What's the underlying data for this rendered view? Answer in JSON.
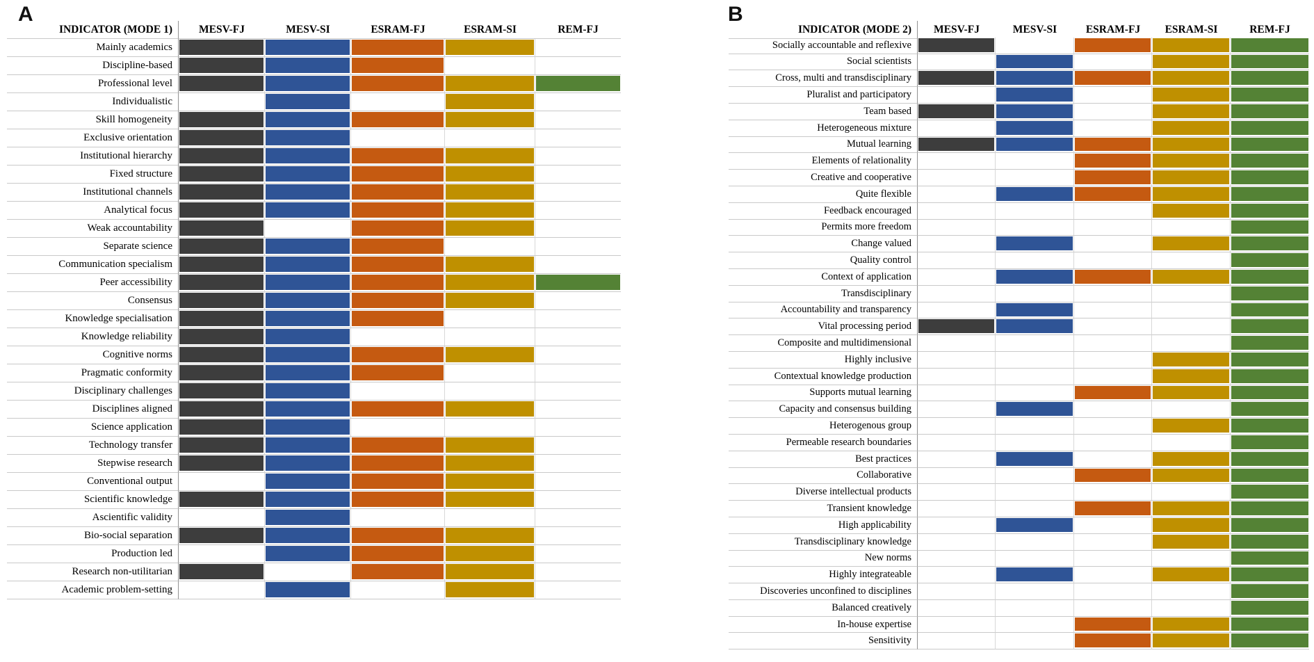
{
  "figure": {
    "panel_a_letter": "A",
    "panel_b_letter": "B"
  },
  "colors": {
    "mesv_fj_dark": "#3d3d3d",
    "mesv_si_blue": "#2f5496",
    "esram_fj_orange": "#c55a11",
    "esram_si_gold": "#bf9000",
    "rem_fj_green": "#548235",
    "gridline": "#c9c9c9",
    "column_separator": "#d8d8d8",
    "label_divider": "#919191",
    "text": "#000000",
    "background": "#ffffff"
  },
  "chart_data": [
    {
      "type": "heatmap",
      "panel": "A",
      "title": "INDICATOR (MODE 1)",
      "legend_position": "none",
      "grid": true,
      "columns": [
        "MESV-FJ",
        "MESV-SI",
        "ESRAM-FJ",
        "ESRAM-SI",
        "REM-FJ"
      ],
      "column_colors": [
        "#3d3d3d",
        "#2f5496",
        "#c55a11",
        "#bf9000",
        "#548235"
      ],
      "value_meaning": "1 = indicator present (cell filled with column color), 0 = absent (white)",
      "rows": [
        {
          "label": "Mainly academics",
          "values": [
            1,
            1,
            1,
            1,
            0
          ]
        },
        {
          "label": "Discipline-based",
          "values": [
            1,
            1,
            1,
            0,
            0
          ]
        },
        {
          "label": "Professional level",
          "values": [
            1,
            1,
            1,
            1,
            1
          ]
        },
        {
          "label": "Individualistic",
          "values": [
            0,
            1,
            0,
            1,
            0
          ]
        },
        {
          "label": "Skill homogeneity",
          "values": [
            1,
            1,
            1,
            1,
            0
          ]
        },
        {
          "label": "Exclusive orientation",
          "values": [
            1,
            1,
            0,
            0,
            0
          ]
        },
        {
          "label": "Institutional hierarchy",
          "values": [
            1,
            1,
            1,
            1,
            0
          ]
        },
        {
          "label": "Fixed structure",
          "values": [
            1,
            1,
            1,
            1,
            0
          ]
        },
        {
          "label": "Institutional channels",
          "values": [
            1,
            1,
            1,
            1,
            0
          ]
        },
        {
          "label": "Analytical focus",
          "values": [
            1,
            1,
            1,
            1,
            0
          ]
        },
        {
          "label": "Weak accountability",
          "values": [
            1,
            0,
            1,
            1,
            0
          ]
        },
        {
          "label": "Separate science",
          "values": [
            1,
            1,
            1,
            0,
            0
          ]
        },
        {
          "label": "Communication specialism",
          "values": [
            1,
            1,
            1,
            1,
            0
          ]
        },
        {
          "label": "Peer accessibility",
          "values": [
            1,
            1,
            1,
            1,
            1
          ]
        },
        {
          "label": "Consensus",
          "values": [
            1,
            1,
            1,
            1,
            0
          ]
        },
        {
          "label": "Knowledge specialisation",
          "values": [
            1,
            1,
            1,
            0,
            0
          ]
        },
        {
          "label": "Knowledge reliability",
          "values": [
            1,
            1,
            0,
            0,
            0
          ]
        },
        {
          "label": "Cognitive norms",
          "values": [
            1,
            1,
            1,
            1,
            0
          ]
        },
        {
          "label": "Pragmatic conformity",
          "values": [
            1,
            1,
            1,
            0,
            0
          ]
        },
        {
          "label": "Disciplinary challenges",
          "values": [
            1,
            1,
            0,
            0,
            0
          ]
        },
        {
          "label": "Disciplines aligned",
          "values": [
            1,
            1,
            1,
            1,
            0
          ]
        },
        {
          "label": "Science application",
          "values": [
            1,
            1,
            0,
            0,
            0
          ]
        },
        {
          "label": "Technology transfer",
          "values": [
            1,
            1,
            1,
            1,
            0
          ]
        },
        {
          "label": "Stepwise research",
          "values": [
            1,
            1,
            1,
            1,
            0
          ]
        },
        {
          "label": "Conventional output",
          "values": [
            0,
            1,
            1,
            1,
            0
          ]
        },
        {
          "label": "Scientific knowledge",
          "values": [
            1,
            1,
            1,
            1,
            0
          ]
        },
        {
          "label": "Ascientific validity",
          "values": [
            0,
            1,
            0,
            0,
            0
          ]
        },
        {
          "label": "Bio-social separation",
          "values": [
            1,
            1,
            1,
            1,
            0
          ]
        },
        {
          "label": "Production led",
          "values": [
            0,
            1,
            1,
            1,
            0
          ]
        },
        {
          "label": "Research non-utilitarian",
          "values": [
            1,
            0,
            1,
            1,
            0
          ]
        },
        {
          "label": "Academic problem-setting",
          "values": [
            0,
            1,
            0,
            1,
            0
          ]
        }
      ]
    },
    {
      "type": "heatmap",
      "panel": "B",
      "title": "INDICATOR (MODE 2)",
      "legend_position": "none",
      "grid": true,
      "columns": [
        "MESV-FJ",
        "MESV-SI",
        "ESRAM-FJ",
        "ESRAM-SI",
        "REM-FJ"
      ],
      "column_colors": [
        "#3d3d3d",
        "#2f5496",
        "#c55a11",
        "#bf9000",
        "#548235"
      ],
      "value_meaning": "1 = indicator present (cell filled with column color), 0 = absent (white)",
      "rows": [
        {
          "label": "Socially accountable and reflexive",
          "values": [
            1,
            0,
            1,
            1,
            1
          ]
        },
        {
          "label": "Social scientists",
          "values": [
            0,
            1,
            0,
            1,
            1
          ]
        },
        {
          "label": "Cross, multi and transdisciplinary",
          "values": [
            1,
            1,
            1,
            1,
            1
          ]
        },
        {
          "label": "Pluralist and participatory",
          "values": [
            0,
            1,
            0,
            1,
            1
          ]
        },
        {
          "label": "Team based",
          "values": [
            1,
            1,
            0,
            1,
            1
          ]
        },
        {
          "label": "Heterogeneous mixture",
          "values": [
            0,
            1,
            0,
            1,
            1
          ]
        },
        {
          "label": "Mutual learning",
          "values": [
            1,
            1,
            1,
            1,
            1
          ]
        },
        {
          "label": "Elements of relationality",
          "values": [
            0,
            0,
            1,
            1,
            1
          ]
        },
        {
          "label": "Creative and cooperative",
          "values": [
            0,
            0,
            1,
            1,
            1
          ]
        },
        {
          "label": "Quite flexible",
          "values": [
            0,
            1,
            1,
            1,
            1
          ]
        },
        {
          "label": "Feedback encouraged",
          "values": [
            0,
            0,
            0,
            1,
            1
          ]
        },
        {
          "label": "Permits more freedom",
          "values": [
            0,
            0,
            0,
            0,
            1
          ]
        },
        {
          "label": "Change valued",
          "values": [
            0,
            1,
            0,
            1,
            1
          ]
        },
        {
          "label": "Quality control",
          "values": [
            0,
            0,
            0,
            0,
            1
          ]
        },
        {
          "label": "Context of application",
          "values": [
            0,
            1,
            1,
            1,
            1
          ]
        },
        {
          "label": "Transdisciplinary",
          "values": [
            0,
            0,
            0,
            0,
            1
          ]
        },
        {
          "label": "Accountability and transparency",
          "values": [
            0,
            1,
            0,
            0,
            1
          ]
        },
        {
          "label": "Vital processing period",
          "values": [
            1,
            1,
            0,
            0,
            1
          ]
        },
        {
          "label": "Composite and multidimensional",
          "values": [
            0,
            0,
            0,
            0,
            1
          ]
        },
        {
          "label": "Highly inclusive",
          "values": [
            0,
            0,
            0,
            1,
            1
          ]
        },
        {
          "label": "Contextual knowledge production",
          "values": [
            0,
            0,
            0,
            1,
            1
          ]
        },
        {
          "label": "Supports mutual learning",
          "values": [
            0,
            0,
            1,
            1,
            1
          ]
        },
        {
          "label": "Capacity and consensus building",
          "values": [
            0,
            1,
            0,
            0,
            1
          ]
        },
        {
          "label": "Heterogenous group",
          "values": [
            0,
            0,
            0,
            1,
            1
          ]
        },
        {
          "label": "Permeable research boundaries",
          "values": [
            0,
            0,
            0,
            0,
            1
          ]
        },
        {
          "label": "Best practices",
          "values": [
            0,
            1,
            0,
            1,
            1
          ]
        },
        {
          "label": "Collaborative",
          "values": [
            0,
            0,
            1,
            1,
            1
          ]
        },
        {
          "label": "Diverse intellectual products",
          "values": [
            0,
            0,
            0,
            0,
            1
          ]
        },
        {
          "label": "Transient knowledge",
          "values": [
            0,
            0,
            1,
            1,
            1
          ]
        },
        {
          "label": "High applicability",
          "values": [
            0,
            1,
            0,
            1,
            1
          ]
        },
        {
          "label": "Transdisciplinary knowledge",
          "values": [
            0,
            0,
            0,
            1,
            1
          ]
        },
        {
          "label": "New norms",
          "values": [
            0,
            0,
            0,
            0,
            1
          ]
        },
        {
          "label": "Highly integrateable",
          "values": [
            0,
            1,
            0,
            1,
            1
          ]
        },
        {
          "label": "Discoveries unconfined to disciplines",
          "values": [
            0,
            0,
            0,
            0,
            1
          ]
        },
        {
          "label": "Balanced creatively",
          "values": [
            0,
            0,
            0,
            0,
            1
          ]
        },
        {
          "label": "In-house expertise",
          "values": [
            0,
            0,
            1,
            1,
            1
          ]
        },
        {
          "label": "Sensitivity",
          "values": [
            0,
            0,
            1,
            1,
            1
          ]
        }
      ]
    }
  ]
}
